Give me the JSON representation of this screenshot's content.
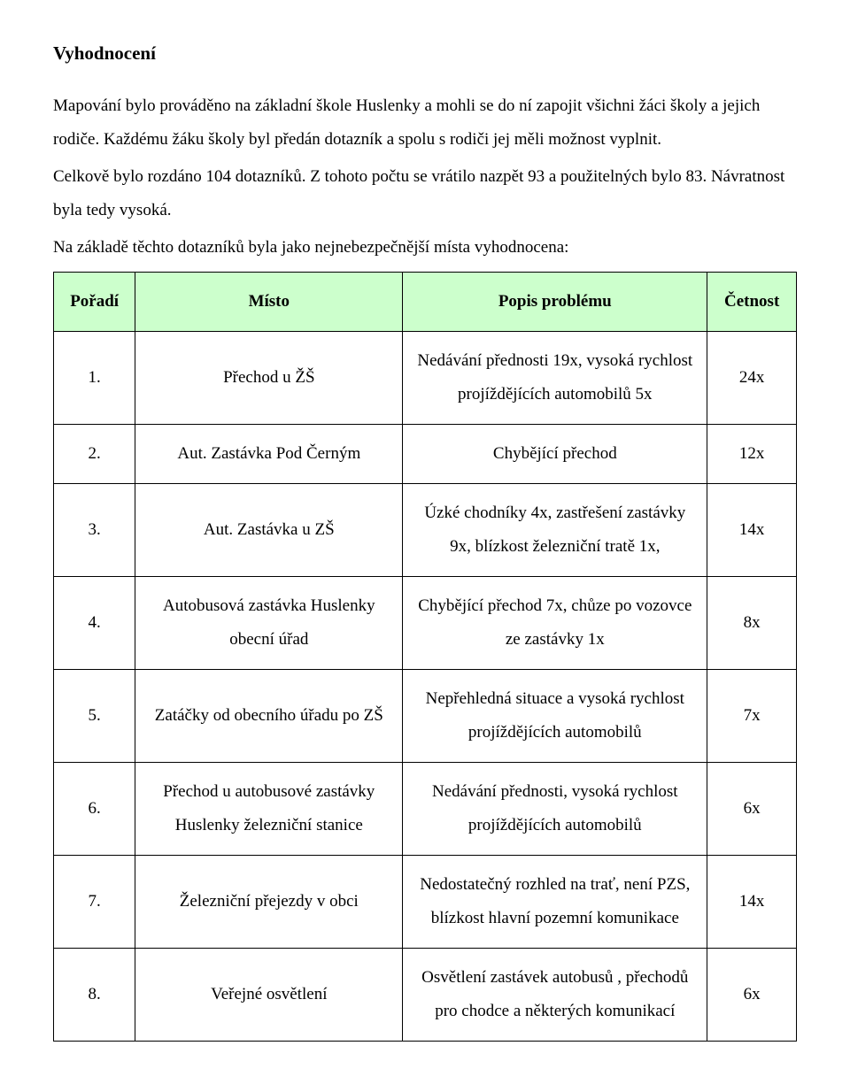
{
  "heading": "Vyhodnocení",
  "paragraphs": [
    "Mapování bylo prováděno na základní škole Huslenky a mohli se do ní zapojit všichni žáci školy a jejich rodiče. Každému žáku školy byl předán dotazník a spolu s rodiči jej měli možnost vyplnit.",
    "Celkově bylo rozdáno 104 dotazníků. Z tohoto počtu se vrátilo nazpět 93 a použitelných bylo 83. Návratnost byla tedy vysoká.",
    "Na základě těchto dotazníků byla jako nejnebezpečnější místa vyhodnocena:"
  ],
  "table": {
    "columns": [
      "Pořadí",
      "Místo",
      "Popis problému",
      "Četnost"
    ],
    "header_bg": "#ccffcc",
    "border_color": "#000000",
    "rows": [
      {
        "order": "1.",
        "place": "Přechod u ŽŠ",
        "desc": "Nedávání přednosti 19x, vysoká rychlost projíždějících automobilů 5x",
        "count": "24x"
      },
      {
        "order": "2.",
        "place": "Aut. Zastávka Pod Černým",
        "desc": "Chybějící přechod",
        "count": "12x"
      },
      {
        "order": "3.",
        "place": "Aut. Zastávka u ZŠ",
        "desc": "Úzké chodníky 4x, zastřešení zastávky 9x, blízkost železniční tratě 1x,",
        "count": "14x"
      },
      {
        "order": "4.",
        "place": "Autobusová zastávka Huslenky obecní úřad",
        "desc": "Chybějící přechod 7x, chůze po vozovce ze zastávky 1x",
        "count": "8x"
      },
      {
        "order": "5.",
        "place": "Zatáčky od obecního úřadu po ZŠ",
        "desc": "Nepřehledná situace a vysoká rychlost projíždějících automobilů",
        "count": "7x"
      },
      {
        "order": "6.",
        "place": "Přechod u autobusové zastávky Huslenky železniční stanice",
        "desc": "Nedávání přednosti, vysoká rychlost projíždějících automobilů",
        "count": "6x"
      },
      {
        "order": "7.",
        "place": "Železniční přejezdy v obci",
        "desc": "Nedostatečný rozhled na trať, není PZS, blízkost hlavní pozemní komunikace",
        "count": "14x"
      },
      {
        "order": "8.",
        "place": "Veřejné osvětlení",
        "desc": "Osvětlení zastávek autobusů , přechodů pro chodce a některých komunikací",
        "count": "6x"
      }
    ]
  }
}
